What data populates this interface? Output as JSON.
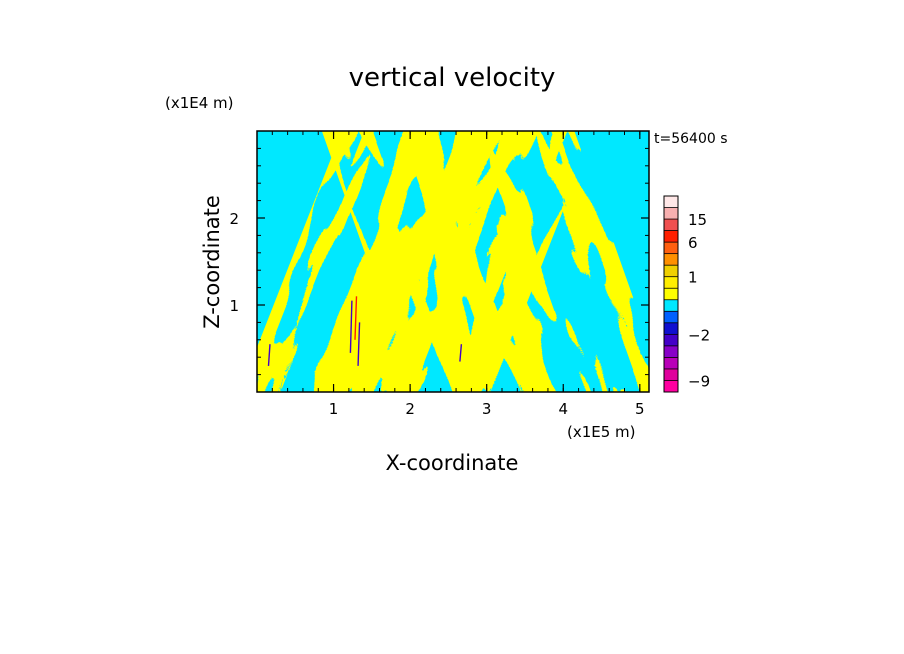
{
  "chart_data": {
    "type": "heatmap",
    "title": "vertical velocity",
    "xlabel": "X-coordinate",
    "ylabel": "Z-coordinate",
    "x_unit": "(x1E5 m)",
    "y_unit": "(x1E4 m)",
    "time_label": "t=56400 s",
    "x_ticks": [
      {
        "value": 1,
        "label": "1"
      },
      {
        "value": 2,
        "label": "2"
      },
      {
        "value": 3,
        "label": "3"
      },
      {
        "value": 4,
        "label": "4"
      },
      {
        "value": 5,
        "label": "5"
      }
    ],
    "y_ticks": [
      {
        "value": 1,
        "label": "1"
      },
      {
        "value": 2,
        "label": "2"
      }
    ],
    "xlim": [
      0,
      5.12
    ],
    "ylim": [
      0,
      3.0
    ],
    "grid": false,
    "colorbar": {
      "levels": [
        -12,
        -9,
        -6,
        -4,
        -3,
        -2,
        -1,
        -0.5,
        0,
        0.5,
        1,
        2,
        3,
        6,
        10,
        15,
        20,
        30
      ],
      "colors": [
        "#ff00a0",
        "#e0009c",
        "#b800b8",
        "#8800c8",
        "#4400c8",
        "#1010d0",
        "#0060ff",
        "#00e8ff",
        "#ffff00",
        "#ffee00",
        "#f0d000",
        "#ff9000",
        "#ff6010",
        "#ff2000",
        "#f05050",
        "#f8b0b0",
        "#ffe8e8"
      ],
      "labeled_levels": [
        {
          "value": 15,
          "label": "15"
        },
        {
          "value": 6,
          "label": "6"
        },
        {
          "value": 1,
          "label": "1"
        },
        {
          "value": -2,
          "label": "−2"
        },
        {
          "value": -9,
          "label": "−9"
        }
      ]
    },
    "field_colors": {
      "negative": "#00e8ff",
      "positive": "#ffff00",
      "strong_negative": "#4400c8",
      "strong_positive": "#ff2000"
    }
  }
}
